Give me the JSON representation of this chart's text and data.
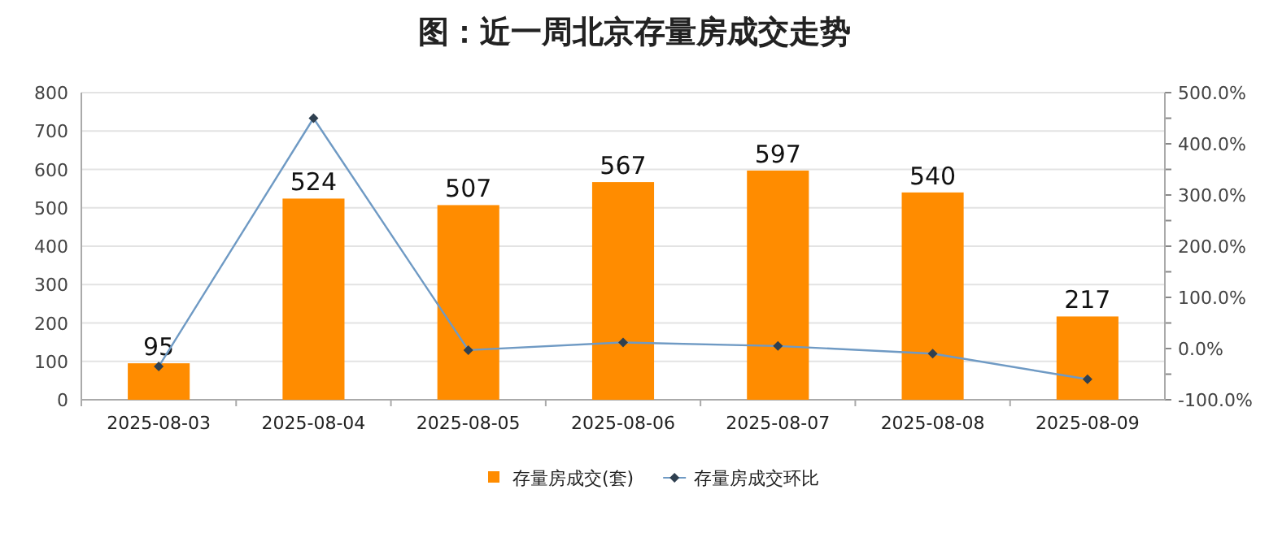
{
  "chart_data": {
    "type": "bar",
    "title": "图：近一周北京存量房成交走势",
    "categories": [
      "2025-08-03",
      "2025-08-04",
      "2025-08-05",
      "2025-08-06",
      "2025-08-07",
      "2025-08-08",
      "2025-08-09"
    ],
    "series": [
      {
        "name": "存量房成交(套)",
        "color": "#ff8c00",
        "values": [
          95,
          524,
          507,
          567,
          597,
          540,
          217
        ],
        "value_labels": [
          "95",
          "524",
          "507",
          "567",
          "597",
          "540",
          "217"
        ]
      },
      {
        "name": "存量房成交环比",
        "type": "line",
        "axis": "y2",
        "color": "#6f9ac4",
        "marker": "diamond",
        "values": [
          -35,
          450,
          -3,
          12,
          5,
          -10,
          -60
        ]
      }
    ],
    "ylim": [
      0,
      800
    ],
    "yticks": [
      0,
      100,
      200,
      300,
      400,
      500,
      600,
      700,
      800
    ],
    "y2lim": [
      -100,
      500
    ],
    "y2ticks": [
      {
        "value": -100,
        "label": "-100.0%"
      },
      {
        "value": -50,
        "label": null
      },
      {
        "value": 0,
        "label": "0.0%"
      },
      {
        "value": 50,
        "label": null
      },
      {
        "value": 100,
        "label": "100.0%"
      },
      {
        "value": 150,
        "label": null
      },
      {
        "value": 200,
        "label": "200.0%"
      },
      {
        "value": 250,
        "label": null
      },
      {
        "value": 300,
        "label": "300.0%"
      },
      {
        "value": 350,
        "label": null
      },
      {
        "value": 400,
        "label": "400.0%"
      },
      {
        "value": 450,
        "label": null
      },
      {
        "value": 500,
        "label": "500.0%"
      }
    ],
    "grid": "y",
    "legend": "bottom"
  }
}
